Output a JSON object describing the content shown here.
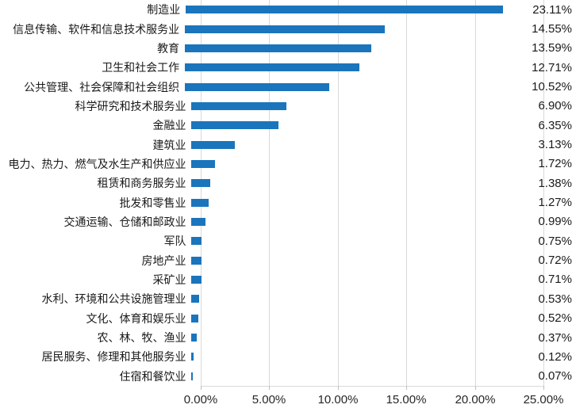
{
  "chart_data": {
    "type": "bar",
    "orientation": "horizontal",
    "title": "",
    "xlabel": "",
    "ylabel": "",
    "xlim": [
      0,
      25
    ],
    "grid": true,
    "legend": false,
    "bar_color": "#1B75BC",
    "gridline_color": "#D9D9D9",
    "axis_color": "#D9D9D9",
    "text_color": "#1A1A1A",
    "categories": [
      "制造业",
      "信息传输、软件和信息技术服务业",
      "教育",
      "卫生和社会工作",
      "公共管理、社会保障和社会组织",
      "科学研究和技术服务业",
      "金融业",
      "建筑业",
      "电力、热力、燃气及水生产和供应业",
      "租赁和商务服务业",
      "批发和零售业",
      "交通运输、仓储和邮政业",
      "军队",
      "房地产业",
      "采矿业",
      "水利、环境和公共设施管理业",
      "文化、体育和娱乐业",
      "农、林、牧、渔业",
      "居民服务、修理和其他服务业",
      "住宿和餐饮业"
    ],
    "values": [
      23.11,
      14.55,
      13.59,
      12.71,
      10.52,
      6.9,
      6.35,
      3.13,
      1.72,
      1.38,
      1.27,
      0.99,
      0.75,
      0.72,
      0.71,
      0.53,
      0.52,
      0.37,
      0.12,
      0.07
    ],
    "value_labels": [
      "23.11%",
      "14.55%",
      "13.59%",
      "12.71%",
      "10.52%",
      "6.90%",
      "6.35%",
      "3.13%",
      "1.72%",
      "1.38%",
      "1.27%",
      "0.99%",
      "0.75%",
      "0.72%",
      "0.71%",
      "0.53%",
      "0.52%",
      "0.37%",
      "0.12%",
      "0.07%"
    ],
    "x_ticks": [
      {
        "value": 0,
        "label": "0.00%"
      },
      {
        "value": 5,
        "label": "5.00%"
      },
      {
        "value": 10,
        "label": "10.00%"
      },
      {
        "value": 15,
        "label": "15.00%"
      },
      {
        "value": 20,
        "label": "20.00%"
      },
      {
        "value": 25,
        "label": "25.00%"
      }
    ]
  }
}
